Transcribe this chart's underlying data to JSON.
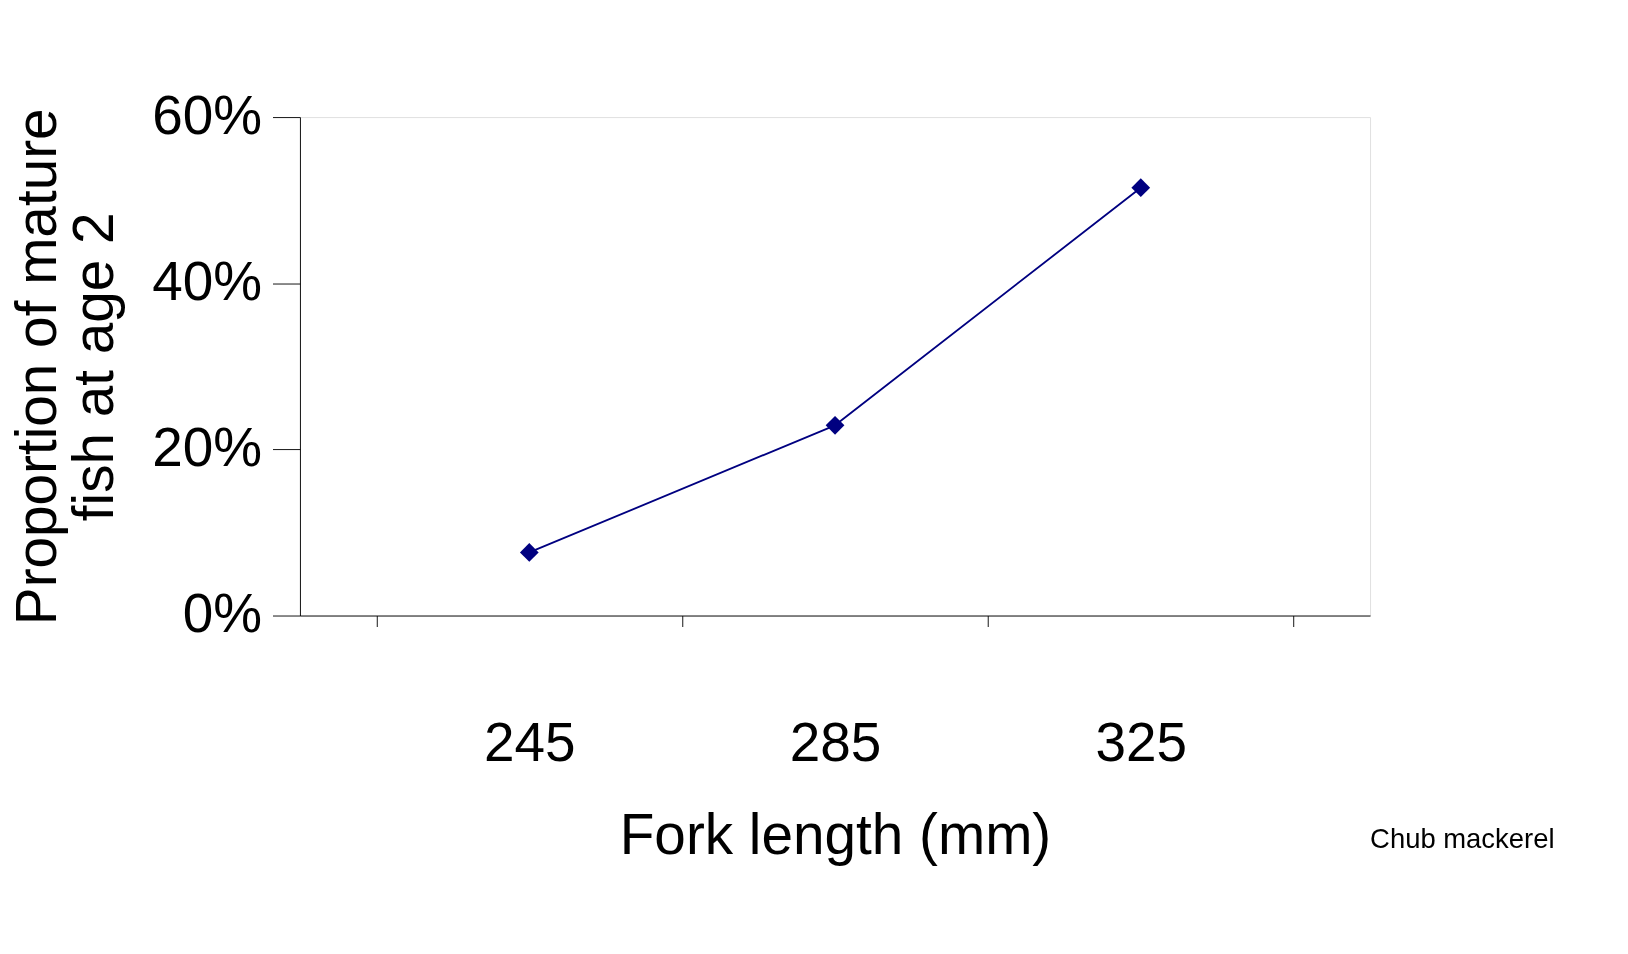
{
  "chart_data": {
    "type": "line",
    "xlabel": "Fork length (mm)",
    "ylabel": "Proportion of mature\nfish at age 2",
    "categories": [
      "245",
      "285",
      "325"
    ],
    "series": [
      {
        "color": "#000080",
        "values": [
          7.6,
          22.9,
          51.5
        ]
      }
    ],
    "ylim": [
      0,
      60
    ],
    "yticks": [
      {
        "value": 0,
        "label": "0%"
      },
      {
        "value": 20,
        "label": "20%"
      },
      {
        "value": 40,
        "label": "40%"
      },
      {
        "value": 60,
        "label": "60%"
      }
    ],
    "marker": "diamond",
    "line_style": "solid",
    "grid": false,
    "legend": false,
    "annotations": [
      "Chub mackerel"
    ]
  }
}
